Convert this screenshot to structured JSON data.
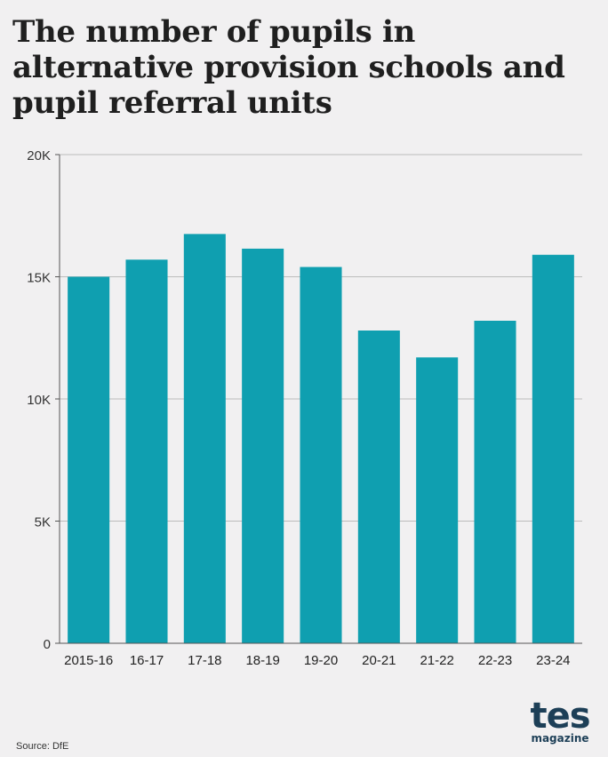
{
  "title": "The number of pupils in alternative provision schools and pupil referral units",
  "source": "Source: DfE",
  "logo": {
    "word": "tes",
    "sub": "magazine"
  },
  "colors": {
    "bar": "#0f9fb0",
    "background": "#f1f0f1",
    "grid": "#bcbcbc",
    "axis": "#555555",
    "logo": "#1d3f57"
  },
  "chart_data": {
    "type": "bar",
    "categories": [
      "2015-16",
      "16-17",
      "17-18",
      "18-19",
      "19-20",
      "20-21",
      "21-22",
      "22-23",
      "23-24"
    ],
    "values": [
      15000,
      15700,
      16750,
      16150,
      15400,
      12800,
      11700,
      13200,
      15900
    ],
    "ylim": [
      0,
      20000
    ],
    "yticks": [
      0,
      5000,
      10000,
      15000,
      20000
    ],
    "ytick_labels": [
      "0",
      "5K",
      "10K",
      "15K",
      "20K"
    ],
    "xlabel": "",
    "ylabel": "",
    "grid": true
  }
}
